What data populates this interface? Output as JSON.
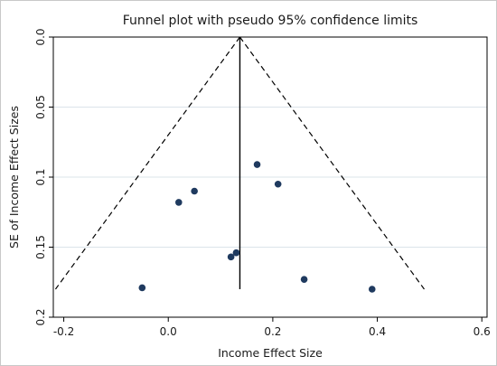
{
  "chart_data": {
    "type": "scatter",
    "title": "Funnel plot with pseudo 95% confidence limits",
    "xlabel": "Income Effect Size",
    "ylabel": "SE of Income Effect Sizes",
    "xlim": [
      -0.22,
      0.61
    ],
    "ylim": [
      0.0,
      0.2
    ],
    "y_reversed": true,
    "x_ticks": [
      -0.2,
      0.0,
      0.2,
      0.4,
      0.6
    ],
    "x_tick_labels": [
      "-0.2",
      "0.0",
      "0.2",
      "0.4",
      "0.6"
    ],
    "y_ticks": [
      0.0,
      0.05,
      0.1,
      0.15,
      0.2
    ],
    "y_tick_labels": [
      "0.0",
      "0.05",
      "0.1",
      "0.15",
      "0.2"
    ],
    "grid": true,
    "legend": "none",
    "pooled_estimate": 0.137,
    "funnel_se_max": 0.18,
    "confidence_multiplier": 1.96,
    "colors": {
      "points": "#1f3a5f",
      "lines": "#000000",
      "grid": "#dbe4ea",
      "plot_background": "#ffffff"
    },
    "points": [
      {
        "x": -0.05,
        "y": 0.179
      },
      {
        "x": 0.02,
        "y": 0.118
      },
      {
        "x": 0.05,
        "y": 0.11
      },
      {
        "x": 0.12,
        "y": 0.157
      },
      {
        "x": 0.13,
        "y": 0.154
      },
      {
        "x": 0.17,
        "y": 0.091
      },
      {
        "x": 0.21,
        "y": 0.105
      },
      {
        "x": 0.26,
        "y": 0.173
      },
      {
        "x": 0.39,
        "y": 0.18
      }
    ]
  }
}
